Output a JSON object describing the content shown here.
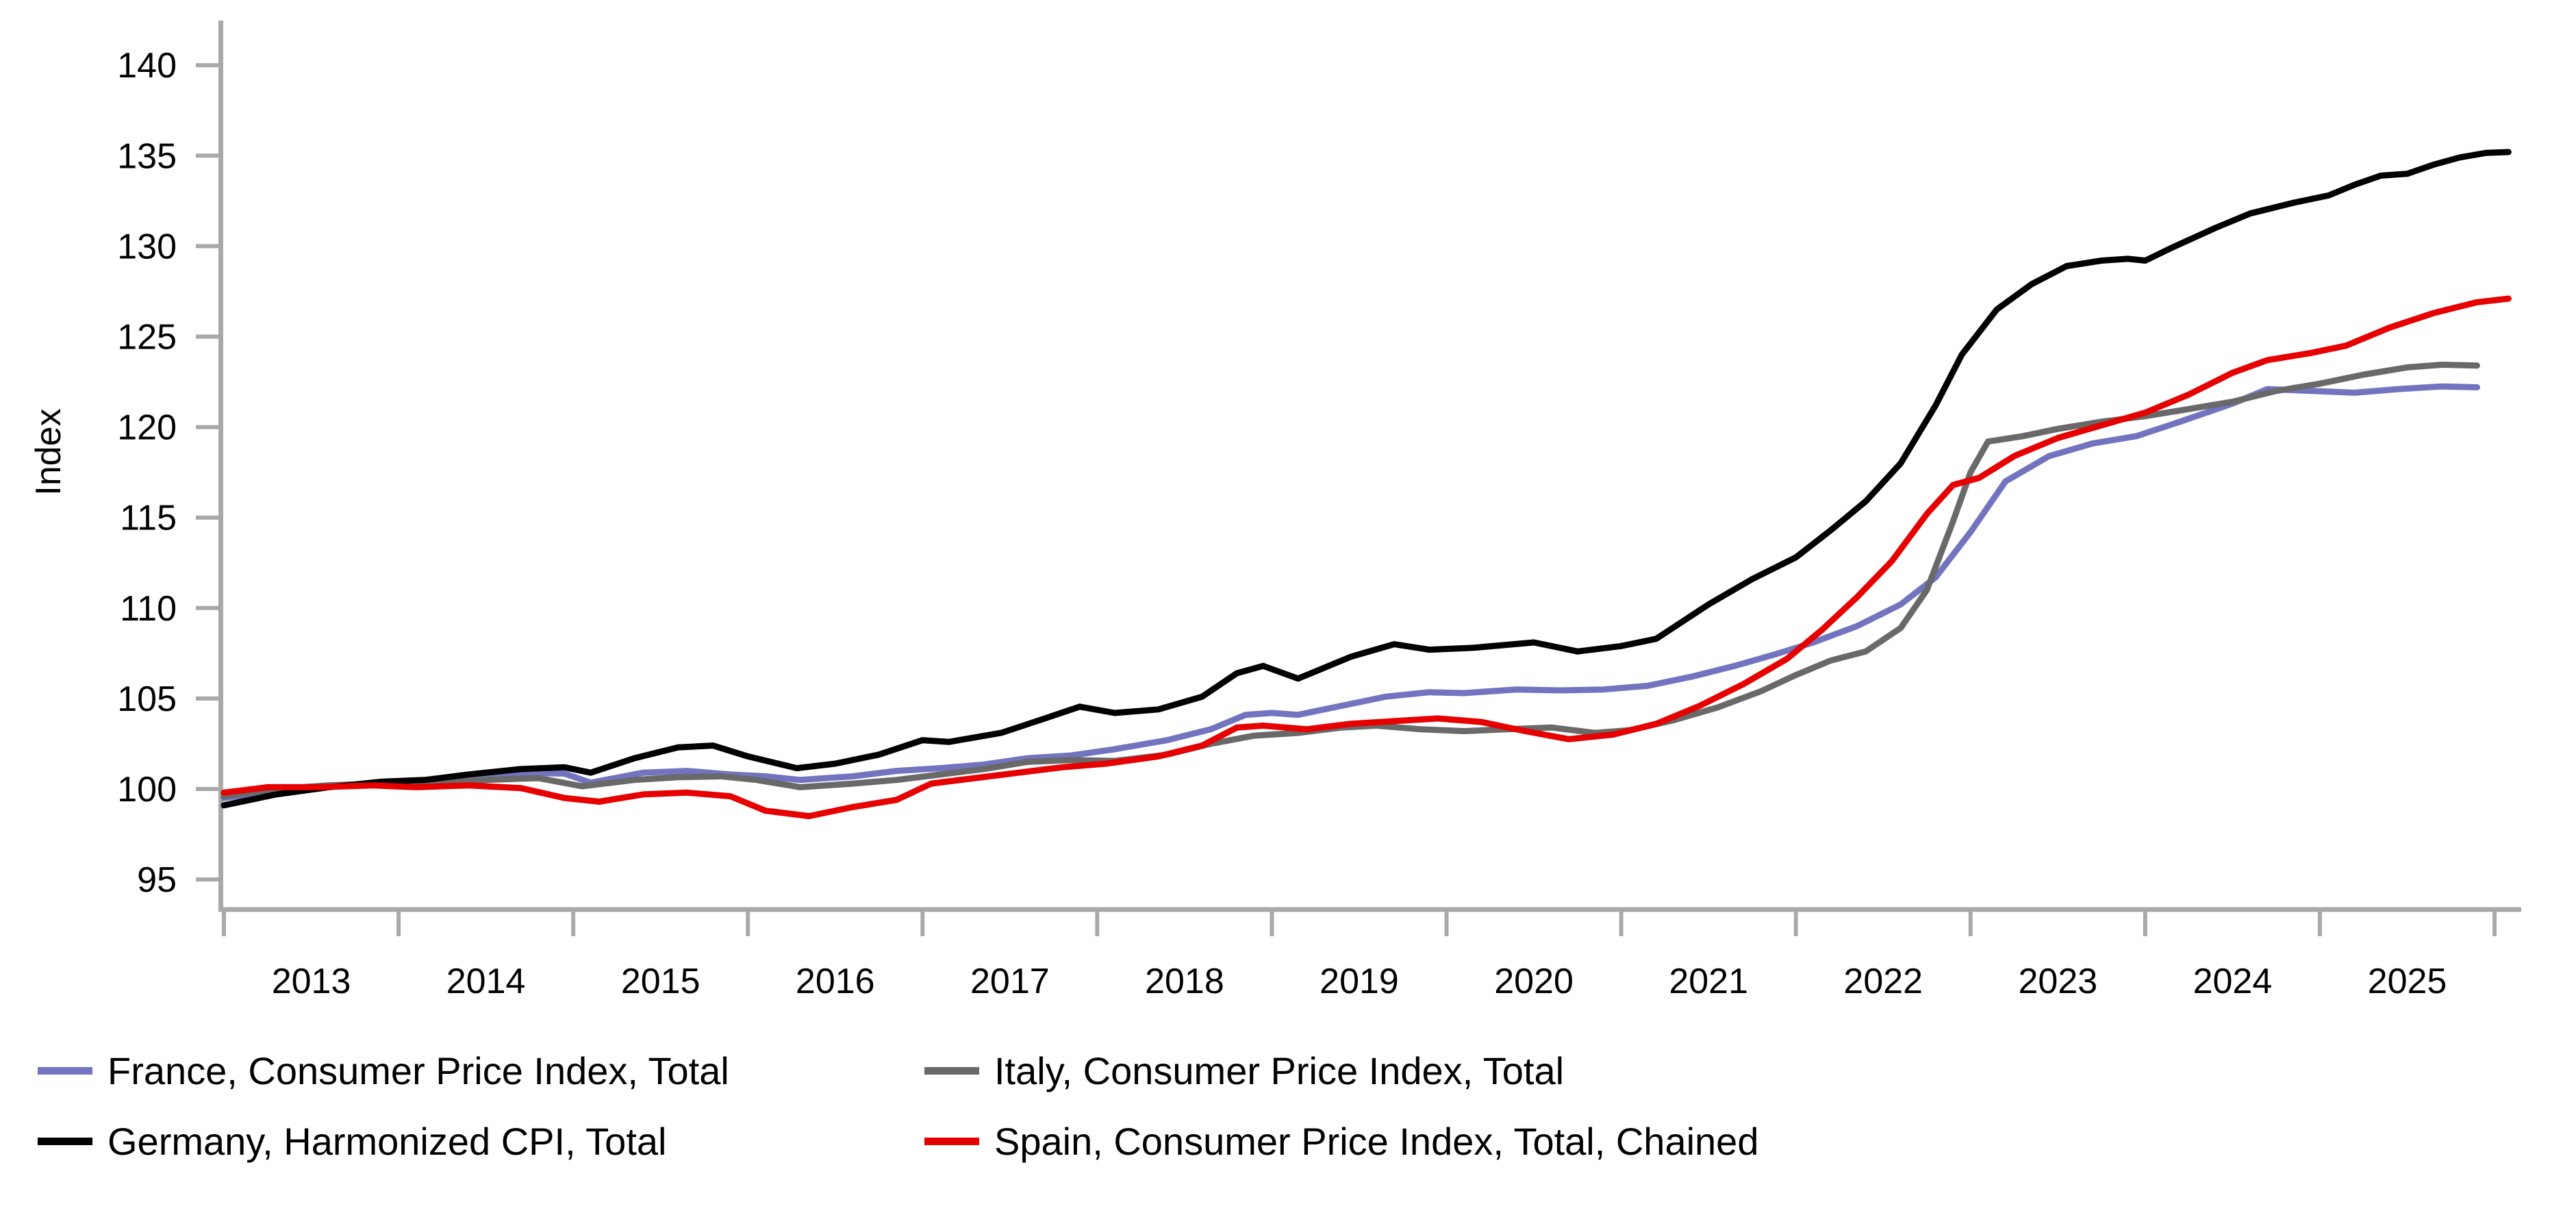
{
  "chart_data": {
    "type": "line",
    "title": "",
    "xlabel": "",
    "ylabel": "Index",
    "xlim": [
      2012.98,
      2026.15
    ],
    "ylim": [
      93.3,
      142.4
    ],
    "yticks": [
      95,
      100,
      105,
      110,
      115,
      120,
      125,
      130,
      135,
      140
    ],
    "x_year_boundary_ticks": [
      2013,
      2014,
      2015,
      2016,
      2017,
      2018,
      2019,
      2020,
      2021,
      2022,
      2023,
      2024,
      2025,
      2026
    ],
    "x_year_labels": [
      "2013",
      "2014",
      "2015",
      "2016",
      "2017",
      "2018",
      "2019",
      "2020",
      "2021",
      "2022",
      "2023",
      "2024",
      "2025"
    ],
    "grid": false,
    "legend_position": "bottom-left",
    "axis_color": "#a9a9a9",
    "series": [
      {
        "name": "France, Consumer Price Index, Total",
        "color": "#7274C0",
        "points": [
          [
            2013.0,
            99.5
          ],
          [
            2013.3,
            99.9
          ],
          [
            2013.6,
            100.2
          ],
          [
            2013.9,
            100.3
          ],
          [
            2014.15,
            100.4
          ],
          [
            2014.45,
            100.6
          ],
          [
            2014.7,
            100.9
          ],
          [
            2014.95,
            100.85
          ],
          [
            2015.1,
            100.35
          ],
          [
            2015.4,
            100.9
          ],
          [
            2015.65,
            101.0
          ],
          [
            2015.9,
            100.8
          ],
          [
            2016.1,
            100.7
          ],
          [
            2016.3,
            100.5
          ],
          [
            2016.6,
            100.7
          ],
          [
            2016.85,
            101.0
          ],
          [
            2017.1,
            101.15
          ],
          [
            2017.35,
            101.35
          ],
          [
            2017.6,
            101.7
          ],
          [
            2017.85,
            101.85
          ],
          [
            2018.1,
            102.2
          ],
          [
            2018.4,
            102.7
          ],
          [
            2018.65,
            103.3
          ],
          [
            2018.85,
            104.1
          ],
          [
            2019.0,
            104.2
          ],
          [
            2019.15,
            104.1
          ],
          [
            2019.4,
            104.6
          ],
          [
            2019.65,
            105.1
          ],
          [
            2019.9,
            105.35
          ],
          [
            2020.1,
            105.3
          ],
          [
            2020.4,
            105.5
          ],
          [
            2020.65,
            105.45
          ],
          [
            2020.9,
            105.5
          ],
          [
            2021.15,
            105.7
          ],
          [
            2021.4,
            106.2
          ],
          [
            2021.65,
            106.8
          ],
          [
            2021.9,
            107.5
          ],
          [
            2022.1,
            108.1
          ],
          [
            2022.35,
            109.0
          ],
          [
            2022.6,
            110.2
          ],
          [
            2022.8,
            111.7
          ],
          [
            2023.0,
            114.2
          ],
          [
            2023.2,
            117.0
          ],
          [
            2023.45,
            118.4
          ],
          [
            2023.7,
            119.1
          ],
          [
            2023.95,
            119.5
          ],
          [
            2024.2,
            120.3
          ],
          [
            2024.5,
            121.3
          ],
          [
            2024.7,
            122.1
          ],
          [
            2024.95,
            122.0
          ],
          [
            2025.2,
            121.9
          ],
          [
            2025.45,
            122.1
          ],
          [
            2025.7,
            122.25
          ],
          [
            2025.9,
            122.2
          ]
        ]
      },
      {
        "name": "Italy, Consumer Price Index, Total",
        "color": "#696969",
        "points": [
          [
            2013.0,
            99.6
          ],
          [
            2013.3,
            100.0
          ],
          [
            2013.6,
            100.2
          ],
          [
            2013.9,
            100.3
          ],
          [
            2014.2,
            100.3
          ],
          [
            2014.5,
            100.5
          ],
          [
            2014.8,
            100.6
          ],
          [
            2015.05,
            100.15
          ],
          [
            2015.35,
            100.5
          ],
          [
            2015.6,
            100.65
          ],
          [
            2015.85,
            100.7
          ],
          [
            2016.05,
            100.5
          ],
          [
            2016.3,
            100.1
          ],
          [
            2016.6,
            100.3
          ],
          [
            2016.85,
            100.5
          ],
          [
            2017.1,
            100.8
          ],
          [
            2017.35,
            101.1
          ],
          [
            2017.6,
            101.5
          ],
          [
            2017.85,
            101.6
          ],
          [
            2018.1,
            101.55
          ],
          [
            2018.4,
            101.9
          ],
          [
            2018.65,
            102.5
          ],
          [
            2018.9,
            102.95
          ],
          [
            2019.15,
            103.1
          ],
          [
            2019.4,
            103.4
          ],
          [
            2019.6,
            103.5
          ],
          [
            2019.85,
            103.3
          ],
          [
            2020.1,
            103.2
          ],
          [
            2020.35,
            103.3
          ],
          [
            2020.6,
            103.4
          ],
          [
            2020.85,
            103.1
          ],
          [
            2021.05,
            103.25
          ],
          [
            2021.3,
            103.8
          ],
          [
            2021.55,
            104.5
          ],
          [
            2021.8,
            105.4
          ],
          [
            2022.0,
            106.3
          ],
          [
            2022.2,
            107.1
          ],
          [
            2022.4,
            107.6
          ],
          [
            2022.6,
            108.9
          ],
          [
            2022.75,
            111.0
          ],
          [
            2022.9,
            114.8
          ],
          [
            2023.0,
            117.5
          ],
          [
            2023.1,
            119.2
          ],
          [
            2023.3,
            119.5
          ],
          [
            2023.5,
            119.9
          ],
          [
            2023.75,
            120.3
          ],
          [
            2024.0,
            120.6
          ],
          [
            2024.25,
            121.0
          ],
          [
            2024.5,
            121.4
          ],
          [
            2024.75,
            122.0
          ],
          [
            2025.0,
            122.4
          ],
          [
            2025.25,
            122.9
          ],
          [
            2025.5,
            123.3
          ],
          [
            2025.7,
            123.45
          ],
          [
            2025.9,
            123.4
          ]
        ]
      },
      {
        "name": "Germany, Harmonized CPI, Total",
        "color": "#000000",
        "points": [
          [
            2013.0,
            99.1
          ],
          [
            2013.3,
            99.7
          ],
          [
            2013.6,
            100.1
          ],
          [
            2013.9,
            100.4
          ],
          [
            2014.15,
            100.5
          ],
          [
            2014.4,
            100.8
          ],
          [
            2014.7,
            101.1
          ],
          [
            2014.95,
            101.2
          ],
          [
            2015.1,
            100.9
          ],
          [
            2015.35,
            101.7
          ],
          [
            2015.6,
            102.3
          ],
          [
            2015.8,
            102.4
          ],
          [
            2016.0,
            101.8
          ],
          [
            2016.28,
            101.15
          ],
          [
            2016.5,
            101.4
          ],
          [
            2016.75,
            101.9
          ],
          [
            2017.0,
            102.7
          ],
          [
            2017.15,
            102.6
          ],
          [
            2017.45,
            103.1
          ],
          [
            2017.7,
            103.9
          ],
          [
            2017.9,
            104.55
          ],
          [
            2018.1,
            104.2
          ],
          [
            2018.35,
            104.4
          ],
          [
            2018.6,
            105.1
          ],
          [
            2018.8,
            106.4
          ],
          [
            2018.95,
            106.8
          ],
          [
            2019.15,
            106.1
          ],
          [
            2019.45,
            107.3
          ],
          [
            2019.7,
            108.0
          ],
          [
            2019.9,
            107.7
          ],
          [
            2020.15,
            107.8
          ],
          [
            2020.5,
            108.1
          ],
          [
            2020.75,
            107.6
          ],
          [
            2021.0,
            107.9
          ],
          [
            2021.2,
            108.3
          ],
          [
            2021.5,
            110.2
          ],
          [
            2021.75,
            111.6
          ],
          [
            2022.0,
            112.8
          ],
          [
            2022.2,
            114.3
          ],
          [
            2022.4,
            115.9
          ],
          [
            2022.6,
            118.0
          ],
          [
            2022.8,
            121.2
          ],
          [
            2022.95,
            124.0
          ],
          [
            2023.15,
            126.5
          ],
          [
            2023.35,
            127.9
          ],
          [
            2023.55,
            128.9
          ],
          [
            2023.75,
            129.2
          ],
          [
            2023.9,
            129.3
          ],
          [
            2024.0,
            129.2
          ],
          [
            2024.15,
            129.9
          ],
          [
            2024.4,
            131.0
          ],
          [
            2024.6,
            131.8
          ],
          [
            2024.85,
            132.4
          ],
          [
            2025.05,
            132.8
          ],
          [
            2025.2,
            133.4
          ],
          [
            2025.35,
            133.9
          ],
          [
            2025.5,
            134.0
          ],
          [
            2025.65,
            134.5
          ],
          [
            2025.8,
            134.9
          ],
          [
            2025.95,
            135.15
          ],
          [
            2026.08,
            135.2
          ]
        ]
      },
      {
        "name": "Spain, Consumer Price Index, Total, Chained",
        "color": "#E60000",
        "points": [
          [
            2013.0,
            99.8
          ],
          [
            2013.25,
            100.1
          ],
          [
            2013.55,
            100.1
          ],
          [
            2013.85,
            100.2
          ],
          [
            2014.1,
            100.1
          ],
          [
            2014.4,
            100.2
          ],
          [
            2014.7,
            100.05
          ],
          [
            2014.95,
            99.5
          ],
          [
            2015.15,
            99.3
          ],
          [
            2015.4,
            99.7
          ],
          [
            2015.65,
            99.8
          ],
          [
            2015.9,
            99.6
          ],
          [
            2016.1,
            98.8
          ],
          [
            2016.35,
            98.5
          ],
          [
            2016.6,
            99.0
          ],
          [
            2016.85,
            99.4
          ],
          [
            2017.05,
            100.3
          ],
          [
            2017.3,
            100.6
          ],
          [
            2017.55,
            100.9
          ],
          [
            2017.8,
            101.2
          ],
          [
            2018.05,
            101.4
          ],
          [
            2018.35,
            101.8
          ],
          [
            2018.6,
            102.4
          ],
          [
            2018.8,
            103.4
          ],
          [
            2018.95,
            103.5
          ],
          [
            2019.2,
            103.3
          ],
          [
            2019.45,
            103.6
          ],
          [
            2019.7,
            103.75
          ],
          [
            2019.95,
            103.9
          ],
          [
            2020.2,
            103.7
          ],
          [
            2020.45,
            103.2
          ],
          [
            2020.7,
            102.75
          ],
          [
            2020.95,
            103.0
          ],
          [
            2021.2,
            103.6
          ],
          [
            2021.45,
            104.6
          ],
          [
            2021.7,
            105.8
          ],
          [
            2021.95,
            107.2
          ],
          [
            2022.15,
            108.8
          ],
          [
            2022.35,
            110.6
          ],
          [
            2022.55,
            112.6
          ],
          [
            2022.75,
            115.2
          ],
          [
            2022.9,
            116.8
          ],
          [
            2023.05,
            117.2
          ],
          [
            2023.25,
            118.4
          ],
          [
            2023.5,
            119.4
          ],
          [
            2023.75,
            120.1
          ],
          [
            2024.0,
            120.8
          ],
          [
            2024.25,
            121.8
          ],
          [
            2024.5,
            123.0
          ],
          [
            2024.7,
            123.7
          ],
          [
            2024.95,
            124.1
          ],
          [
            2025.15,
            124.5
          ],
          [
            2025.4,
            125.5
          ],
          [
            2025.65,
            126.3
          ],
          [
            2025.9,
            126.9
          ],
          [
            2026.08,
            127.1
          ]
        ]
      }
    ]
  },
  "axis": {
    "ylabel": "Index"
  },
  "legend": {
    "items": [
      {
        "label": "France, Consumer Price Index, Total",
        "color": "#7274C0"
      },
      {
        "label": "Italy, Consumer Price Index, Total",
        "color": "#696969"
      },
      {
        "label": "Germany, Harmonized CPI, Total",
        "color": "#000000"
      },
      {
        "label": "Spain, Consumer Price Index, Total, Chained",
        "color": "#E60000"
      }
    ]
  }
}
